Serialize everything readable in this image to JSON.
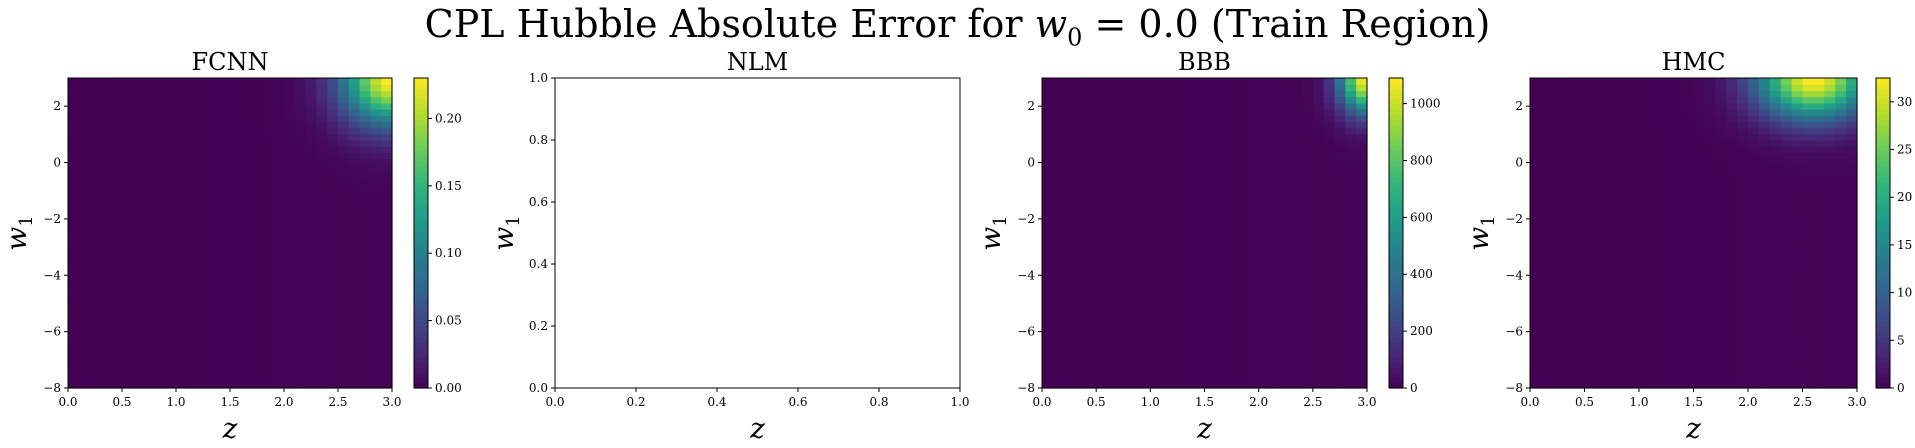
{
  "figure": {
    "title_text": "CPL Hubble Absolute Error for ",
    "title_math": "w",
    "title_sub": "0",
    "title_tail": " = 0.0 (Train Region)"
  },
  "colors": {
    "viridis_low": "#440154",
    "viridis_mid": "#21918c",
    "viridis_high": "#fde725"
  },
  "chart_data": [
    {
      "type": "heatmap",
      "title": "FCNN",
      "xlabel": "z",
      "ylabel": "w1",
      "xlim": [
        0.0,
        3.0
      ],
      "ylim": [
        -8,
        3
      ],
      "xticks": [
        "0.0",
        "0.5",
        "1.0",
        "1.5",
        "2.0",
        "2.5",
        "3.0"
      ],
      "yticks": [
        "−8",
        "−6",
        "−4",
        "−2",
        "0",
        "2"
      ],
      "colorbar": {
        "min": 0.0,
        "max": 0.23,
        "ticks": [
          "0.00",
          "0.05",
          "0.10",
          "0.15",
          "0.20"
        ],
        "tick_values": [
          0,
          0.05,
          0.1,
          0.15,
          0.2
        ]
      },
      "peak": {
        "z": 3.0,
        "w1": 3.0,
        "value": 0.23,
        "sigma_z": 0.45,
        "sigma_w1": 1.6
      }
    },
    {
      "type": "empty",
      "title": "NLM",
      "xlabel": "z",
      "ylabel": "w1",
      "xlim": [
        0.0,
        1.0
      ],
      "ylim": [
        0.0,
        1.0
      ],
      "xticks": [
        "0.0",
        "0.2",
        "0.4",
        "0.6",
        "0.8",
        "1.0"
      ],
      "yticks": [
        "0.0",
        "0.2",
        "0.4",
        "0.6",
        "0.8",
        "1.0"
      ]
    },
    {
      "type": "heatmap",
      "title": "BBB",
      "xlabel": "z",
      "ylabel": "w1",
      "xlim": [
        0.0,
        3.0
      ],
      "ylim": [
        -8,
        3
      ],
      "xticks": [
        "0.0",
        "0.5",
        "1.0",
        "1.5",
        "2.0",
        "2.5",
        "3.0"
      ],
      "yticks": [
        "−8",
        "−6",
        "−4",
        "−2",
        "0",
        "2"
      ],
      "colorbar": {
        "min": 0,
        "max": 1090,
        "ticks": [
          "0",
          "200",
          "400",
          "600",
          "800",
          "1000"
        ],
        "tick_values": [
          0,
          200,
          400,
          600,
          800,
          1000
        ]
      },
      "peak": {
        "z": 3.0,
        "w1": 3.0,
        "value": 1090,
        "sigma_z": 0.25,
        "sigma_w1": 1.2
      }
    },
    {
      "type": "heatmap",
      "title": "HMC",
      "xlabel": "z",
      "ylabel": "w1",
      "xlim": [
        0.0,
        3.0
      ],
      "ylim": [
        -8,
        3
      ],
      "xticks": [
        "0.0",
        "0.5",
        "1.0",
        "1.5",
        "2.0",
        "2.5",
        "3.0"
      ],
      "yticks": [
        "−8",
        "−6",
        "−4",
        "−2",
        "0",
        "2"
      ],
      "colorbar": {
        "min": 0,
        "max": 32.5,
        "ticks": [
          "0",
          "5",
          "10",
          "15",
          "20",
          "25",
          "30"
        ],
        "tick_values": [
          0,
          5,
          10,
          15,
          20,
          25,
          30
        ]
      },
      "peak": {
        "z": 2.6,
        "w1": 3.0,
        "value": 32.5,
        "sigma_z": 0.5,
        "sigma_w1": 1.4
      }
    }
  ]
}
